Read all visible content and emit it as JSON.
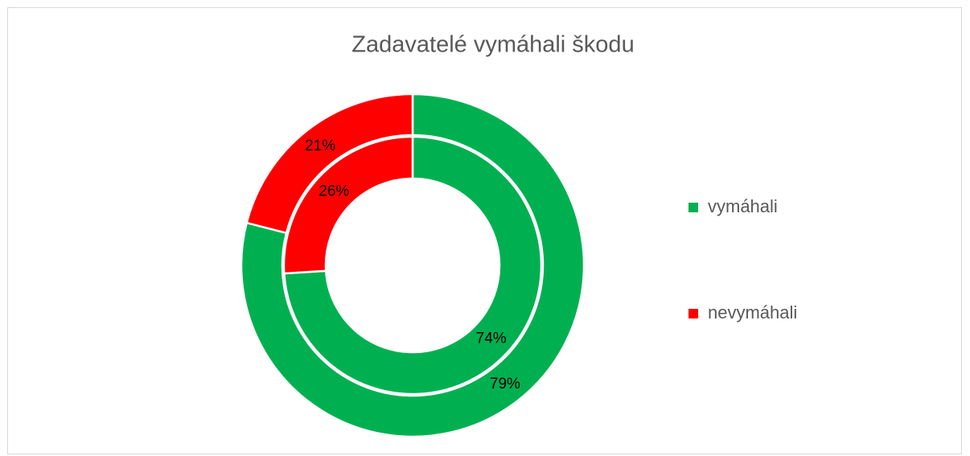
{
  "chart_data": {
    "type": "doughnut",
    "title": "Zadavatelé vymáhali škodu",
    "categories": [
      "vymáhali",
      "nevymáhali"
    ],
    "colors": [
      "#00b050",
      "#ff0000"
    ],
    "series": [
      {
        "values": [
          79,
          21
        ],
        "value_labels": [
          "79%",
          "21%"
        ]
      },
      {
        "values": [
          74,
          26
        ],
        "value_labels": [
          "74%",
          "26%"
        ]
      }
    ],
    "legend": "right"
  }
}
